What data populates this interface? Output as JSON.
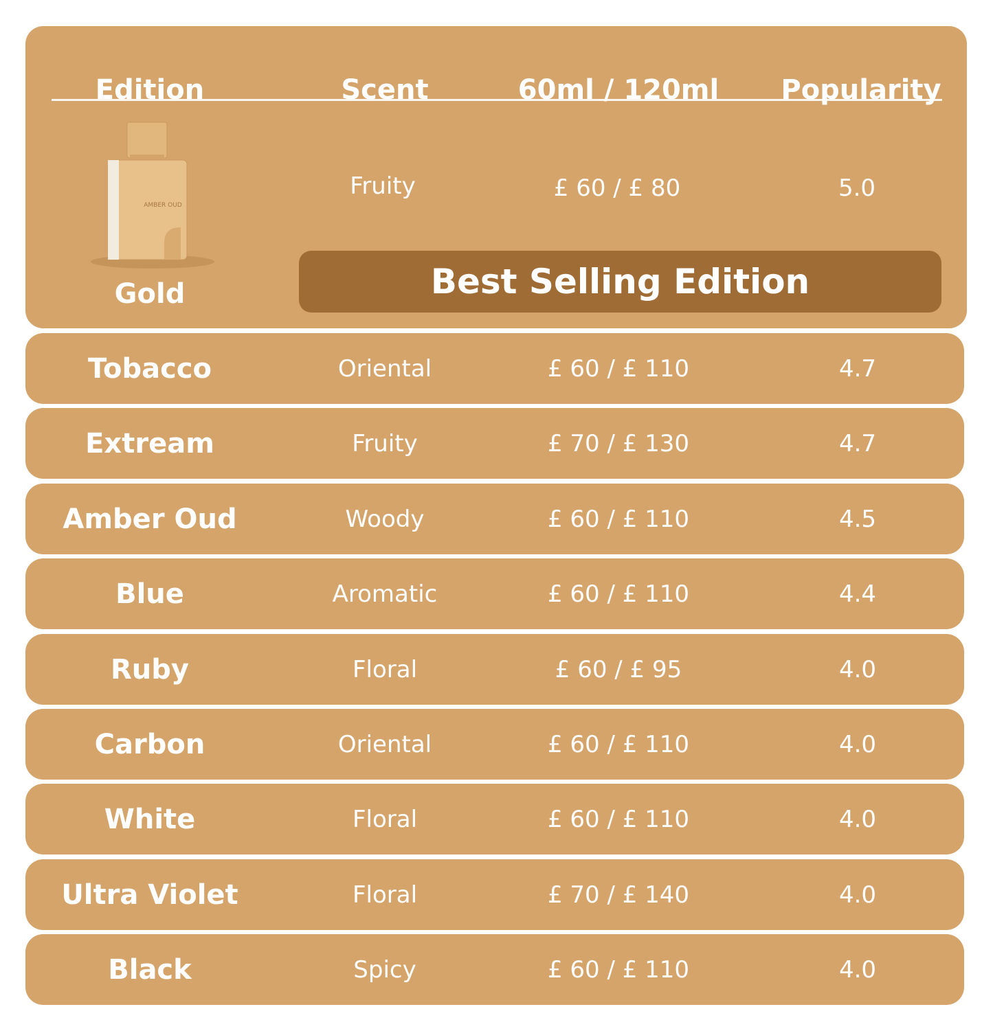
{
  "headers": [
    "Edition",
    "Scent",
    "60ml / 120ml",
    "Popularity"
  ],
  "featured": {
    "edition": "Gold",
    "scent": "Fruity",
    "price": "£ 60 / £ 80",
    "popularity": "5.0",
    "badge": "Best Selling Edition",
    "bottle_label": "AMBER OUD"
  },
  "rows": [
    {
      "edition": "Tobacco",
      "scent": "Oriental",
      "price": "£ 60 / £ 110",
      "popularity": "4.7"
    },
    {
      "edition": "Extream",
      "scent": "Fruity",
      "price": "£ 70 / £ 130",
      "popularity": "4.7"
    },
    {
      "edition": "Amber Oud",
      "scent": "Woody",
      "price": "£ 60 / £ 110",
      "popularity": "4.5"
    },
    {
      "edition": "Blue",
      "scent": "Aromatic",
      "price": "£ 60 / £ 110",
      "popularity": "4.4"
    },
    {
      "edition": "Ruby",
      "scent": "Floral",
      "price": "£ 60 / £ 95",
      "popularity": "4.0"
    },
    {
      "edition": "Carbon",
      "scent": "Oriental",
      "price": "£ 60 / £ 110",
      "popularity": "4.0"
    },
    {
      "edition": "White",
      "scent": "Floral",
      "price": "£ 60 / £ 110",
      "popularity": "4.0"
    },
    {
      "edition": "Ultra Violet",
      "scent": "Floral",
      "price": "£ 70 / £ 140",
      "popularity": "4.0"
    },
    {
      "edition": "Black",
      "scent": "Spicy",
      "price": "£ 60 / £ 110",
      "popularity": "4.0"
    }
  ],
  "colors": {
    "card": "#D4A46A",
    "badge": "#A06C35",
    "text": "#FFFFFF"
  }
}
